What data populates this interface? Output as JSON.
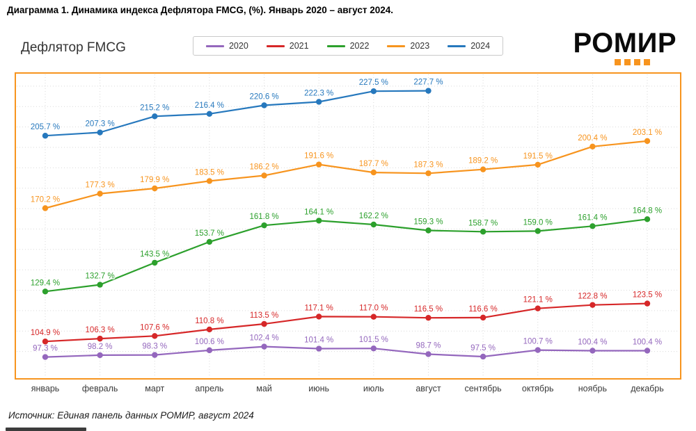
{
  "page": {
    "title": "Диаграмма 1. Динамика индекса Дефлятора FMCG, (%). Январь 2020 – август 2024.",
    "source": "Источник: Единая панель данных РОМИР, август 2024"
  },
  "logo": {
    "text": "РОМИР",
    "accent_color": "#f7941e"
  },
  "chart_data": {
    "type": "line",
    "title": "Дефлятор FMCG",
    "unit": "%",
    "categories": [
      "январь",
      "февраль",
      "март",
      "апрель",
      "май",
      "июнь",
      "июль",
      "август",
      "сентябрь",
      "октябрь",
      "ноябрь",
      "декабрь"
    ],
    "ylim": [
      90,
      232
    ],
    "grid": true,
    "legend_position": "top-center",
    "frame_color": "#f7941e",
    "series": [
      {
        "name": "2020",
        "color": "#9467bd",
        "values": [
          97.3,
          98.2,
          98.3,
          100.6,
          102.4,
          101.4,
          101.5,
          98.7,
          97.5,
          100.7,
          100.4,
          100.4
        ]
      },
      {
        "name": "2021",
        "color": "#d62728",
        "values": [
          104.9,
          106.3,
          107.6,
          110.8,
          113.5,
          117.1,
          117.0,
          116.5,
          116.6,
          121.1,
          122.8,
          123.5
        ]
      },
      {
        "name": "2022",
        "color": "#2ca02c",
        "values": [
          129.4,
          132.7,
          143.5,
          153.7,
          161.8,
          164.1,
          162.2,
          159.3,
          158.7,
          159.0,
          161.4,
          164.8
        ]
      },
      {
        "name": "2023",
        "color": "#f7941e",
        "values": [
          170.2,
          177.3,
          179.9,
          183.5,
          186.2,
          191.6,
          187.7,
          187.3,
          189.2,
          191.5,
          200.4,
          203.1
        ]
      },
      {
        "name": "2024",
        "color": "#2678bd",
        "values": [
          205.7,
          207.3,
          215.2,
          216.4,
          220.6,
          222.3,
          227.5,
          227.7
        ]
      }
    ]
  }
}
